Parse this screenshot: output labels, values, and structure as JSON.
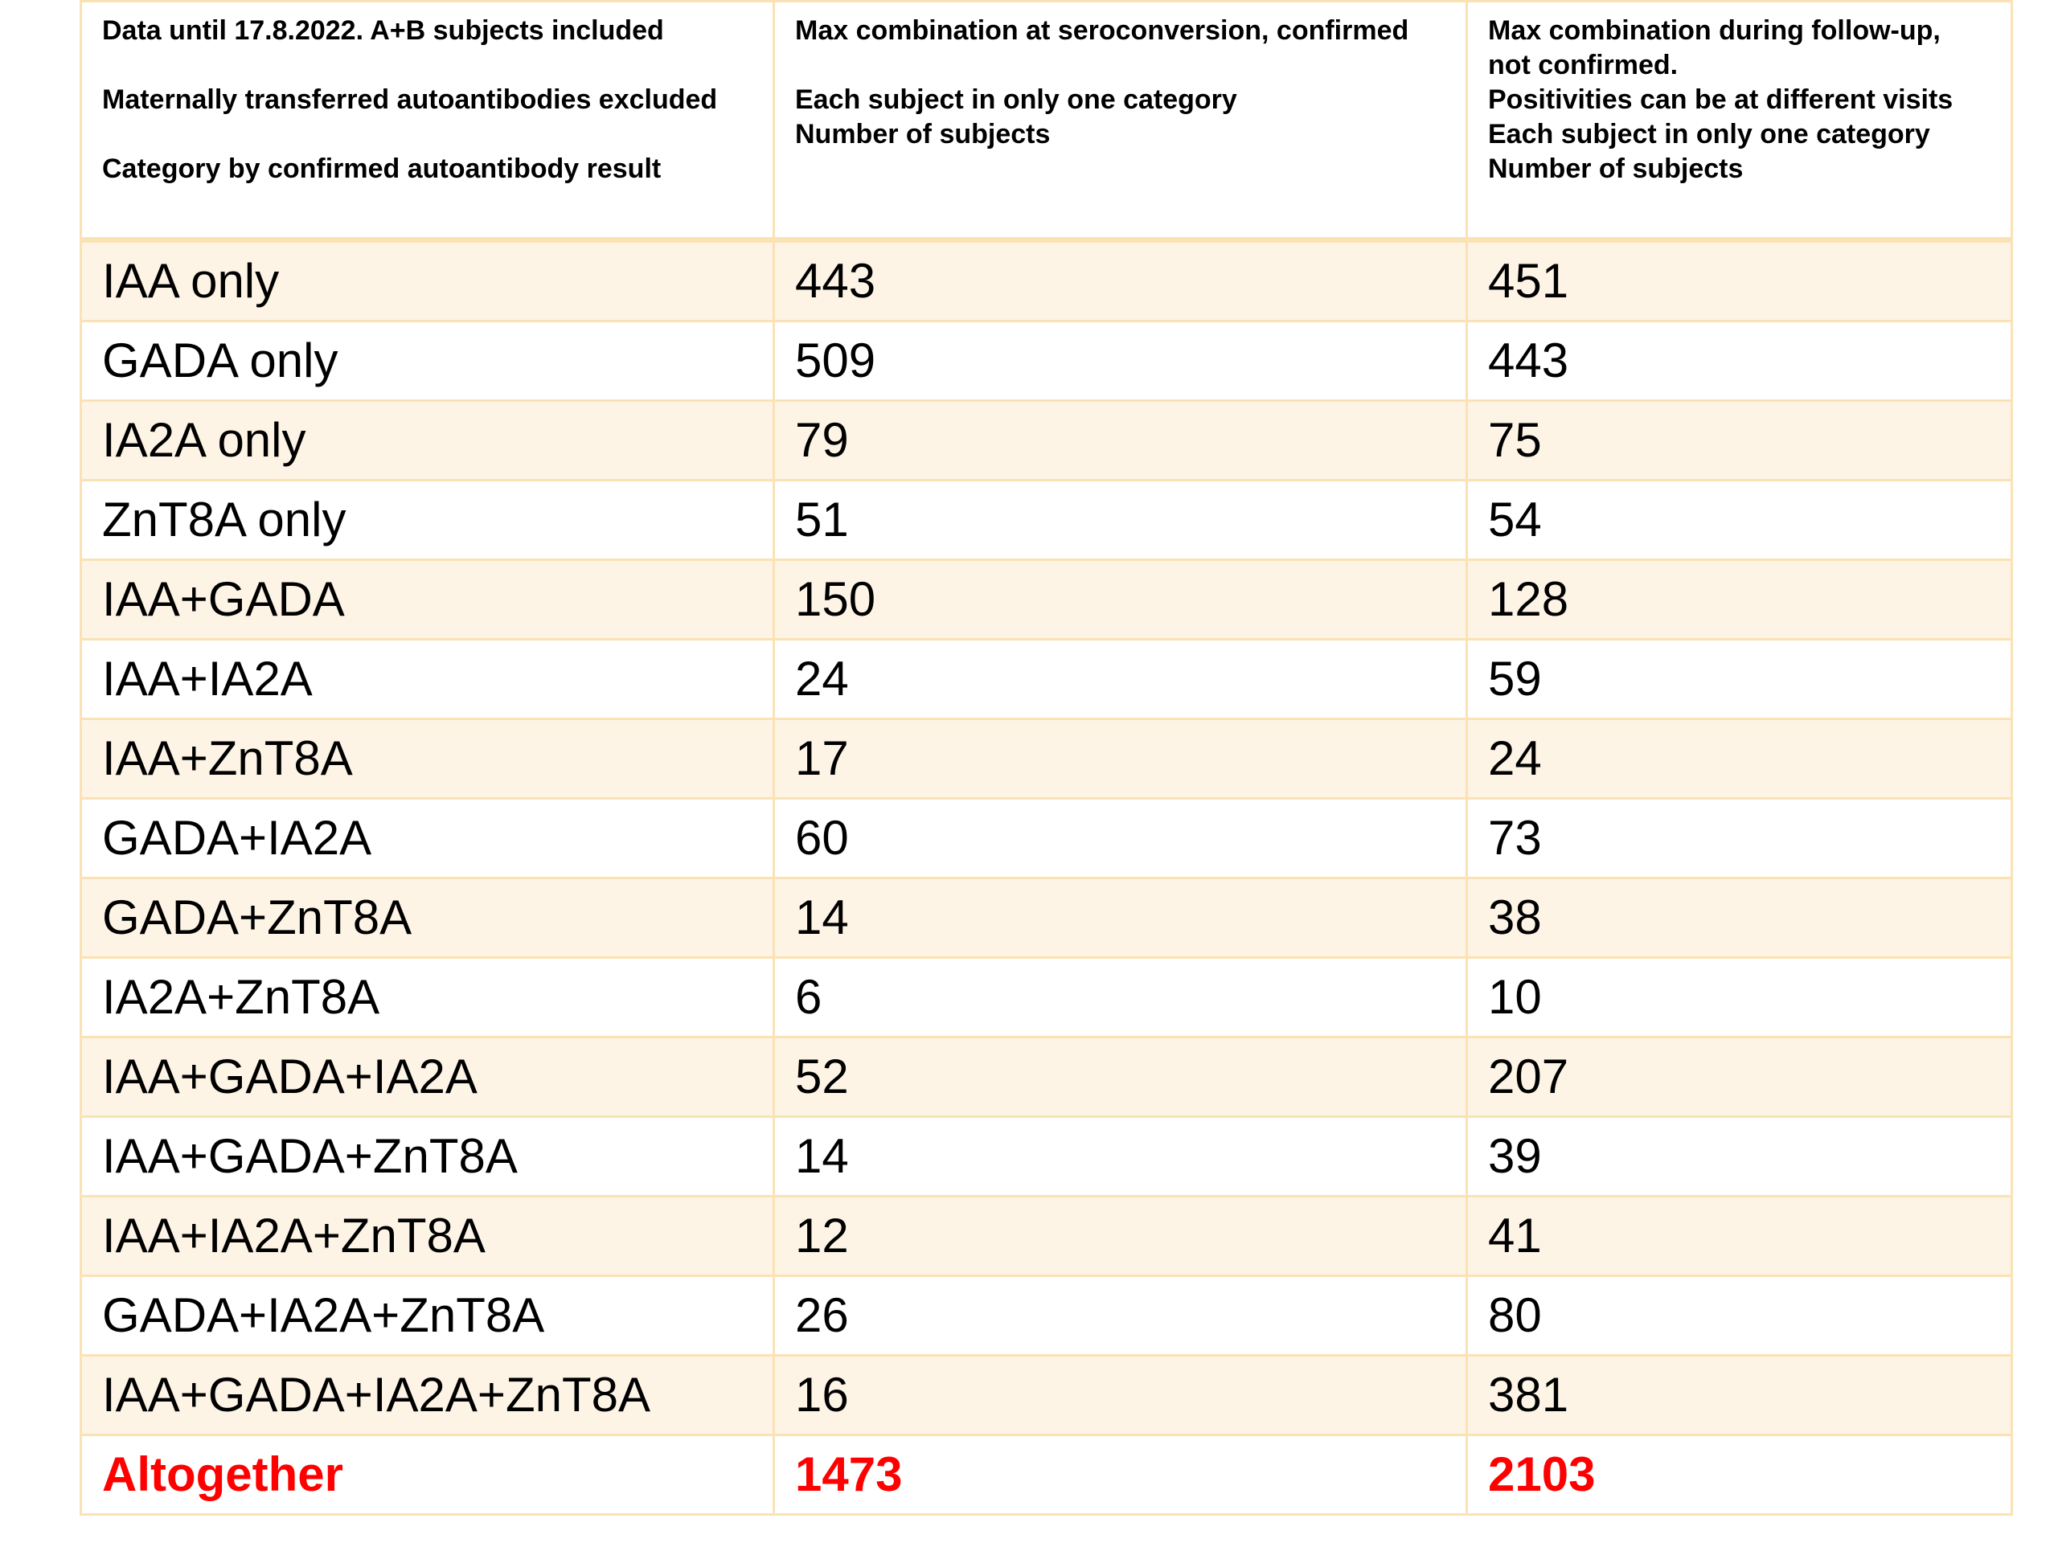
{
  "header": {
    "col1": [
      "Data until 17.8.2022. A+B subjects included",
      "",
      "Maternally transferred autoantibodies excluded",
      "",
      "Category by confirmed autoantibody result"
    ],
    "col2": [
      "Max combination at seroconversion, confirmed",
      "",
      "Each subject in only one category",
      "Number of subjects"
    ],
    "col3": [
      "Max combination during follow-up,",
      "not confirmed.",
      "Positivities can be at different visits",
      "Each subject in only one category",
      "Number of subjects"
    ]
  },
  "rows": [
    {
      "category": "IAA only",
      "seroconversion": "443",
      "followup": "451"
    },
    {
      "category": "GADA only",
      "seroconversion": "509",
      "followup": "443"
    },
    {
      "category": "IA2A only",
      "seroconversion": "79",
      "followup": "75"
    },
    {
      "category": "ZnT8A only",
      "seroconversion": "51",
      "followup": "54"
    },
    {
      "category": "IAA+GADA",
      "seroconversion": "150",
      "followup": "128"
    },
    {
      "category": "IAA+IA2A",
      "seroconversion": "24",
      "followup": "59"
    },
    {
      "category": "IAA+ZnT8A",
      "seroconversion": "17",
      "followup": "24"
    },
    {
      "category": "GADA+IA2A",
      "seroconversion": "60",
      "followup": "73"
    },
    {
      "category": "GADA+ZnT8A",
      "seroconversion": "14",
      "followup": "38"
    },
    {
      "category": "IA2A+ZnT8A",
      "seroconversion": "6",
      "followup": "10"
    },
    {
      "category": "IAA+GADA+IA2A",
      "seroconversion": "52",
      "followup": "207"
    },
    {
      "category": "IAA+GADA+ZnT8A",
      "seroconversion": "14",
      "followup": "39"
    },
    {
      "category": "IAA+IA2A+ZnT8A",
      "seroconversion": "12",
      "followup": "41"
    },
    {
      "category": "GADA+IA2A+ZnT8A",
      "seroconversion": "26",
      "followup": "80"
    },
    {
      "category": "IAA+GADA+IA2A+ZnT8A",
      "seroconversion": "16",
      "followup": "381"
    }
  ],
  "total": {
    "category": "Altogether",
    "seroconversion": "1473",
    "followup": "2103"
  },
  "colors": {
    "total_text": "#ff0000",
    "border": "#fbe2b4",
    "stripe": "#fdf4e6"
  }
}
